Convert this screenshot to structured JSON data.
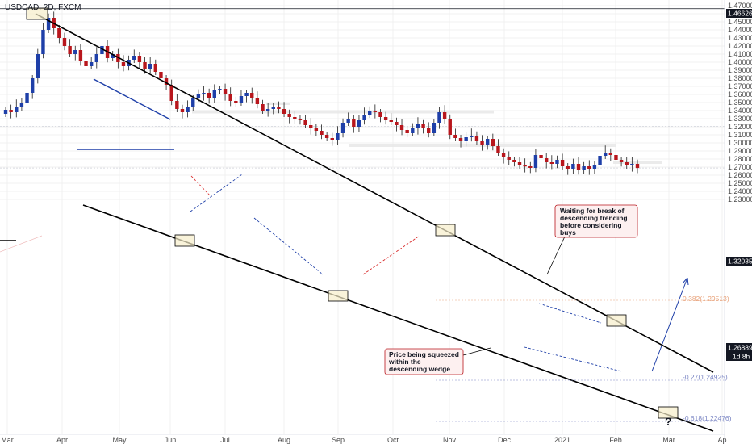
{
  "symbol": "USDCAD, 2D, FXCM",
  "colors": {
    "up": "#1e3fa8",
    "down": "#b8161c",
    "grid": "#f0f0f0",
    "axis": "#e0e3eb",
    "tag": "#131722",
    "box": "#f6eecb"
  },
  "annotations": {
    "note_top": [
      "Waiting for break of",
      "descending trending",
      "before considering",
      "buys"
    ],
    "note_bottom": [
      "Price being squeezed",
      "within the",
      "descending wedge"
    ],
    "question": "?"
  },
  "fib_labels": {
    "f1": "0.382(1.29513)",
    "f2": "-0.27(1.24925)",
    "f3": "-0.618(1.22476)"
  },
  "price_tags": {
    "top": "1.46626",
    "mid": "1.32035",
    "last": "1.26889",
    "tf": "1d 8h"
  },
  "chart_data": {
    "type": "candlestick",
    "title": "USDCAD, 2D, FXCM",
    "x_ticks": [
      "Mar",
      "Apr",
      "May",
      "Jun",
      "Jul",
      "Aug",
      "Sep",
      "Oct",
      "Nov",
      "Dec",
      "2021",
      "Feb",
      "Mar",
      "Ap"
    ],
    "y_ticks": [
      "1.47000",
      "1.46000",
      "1.45000",
      "1.44000",
      "1.43000",
      "1.42000",
      "1.41000",
      "1.40000",
      "1.39000",
      "1.38000",
      "1.37000",
      "1.36000",
      "1.35000",
      "1.34000",
      "1.33000",
      "1.32000",
      "1.31000",
      "1.30000",
      "1.29000",
      "1.28000",
      "1.27000",
      "1.26000",
      "1.25000",
      "1.24000",
      "1.23000"
    ],
    "ylim": [
      1.2235,
      1.4705
    ],
    "close_path": [
      1.341,
      1.338,
      1.345,
      1.35,
      1.362,
      1.38,
      1.41,
      1.44,
      1.455,
      1.442,
      1.43,
      1.42,
      1.41,
      1.415,
      1.402,
      1.395,
      1.4,
      1.41,
      1.42,
      1.405,
      1.41,
      1.4,
      1.395,
      1.403,
      1.408,
      1.4,
      1.392,
      1.398,
      1.388,
      1.38,
      1.372,
      1.352,
      1.342,
      1.338,
      1.345,
      1.355,
      1.36,
      1.362,
      1.355,
      1.365,
      1.367,
      1.36,
      1.352,
      1.35,
      1.358,
      1.362,
      1.355,
      1.348,
      1.34,
      1.342,
      1.345,
      1.342,
      1.336,
      1.332,
      1.33,
      1.328,
      1.322,
      1.318,
      1.315,
      1.31,
      1.306,
      1.304,
      1.312,
      1.325,
      1.33,
      1.32,
      1.328,
      1.335,
      1.34,
      1.338,
      1.332,
      1.328,
      1.326,
      1.322,
      1.316,
      1.312,
      1.318,
      1.323,
      1.318,
      1.312,
      1.325,
      1.338,
      1.33,
      1.31,
      1.306,
      1.302,
      1.307,
      1.309,
      1.302,
      1.298,
      1.305,
      1.296,
      1.288,
      1.282,
      1.279,
      1.276,
      1.272,
      1.271,
      1.269,
      1.285,
      1.281,
      1.276,
      1.274,
      1.279,
      1.271,
      1.268,
      1.274,
      1.266,
      1.271,
      1.268,
      1.273,
      1.284,
      1.288,
      1.285,
      1.279,
      1.276,
      1.272,
      1.274,
      1.2689
    ],
    "x_start": "2020-02-25",
    "step_days": 2
  }
}
